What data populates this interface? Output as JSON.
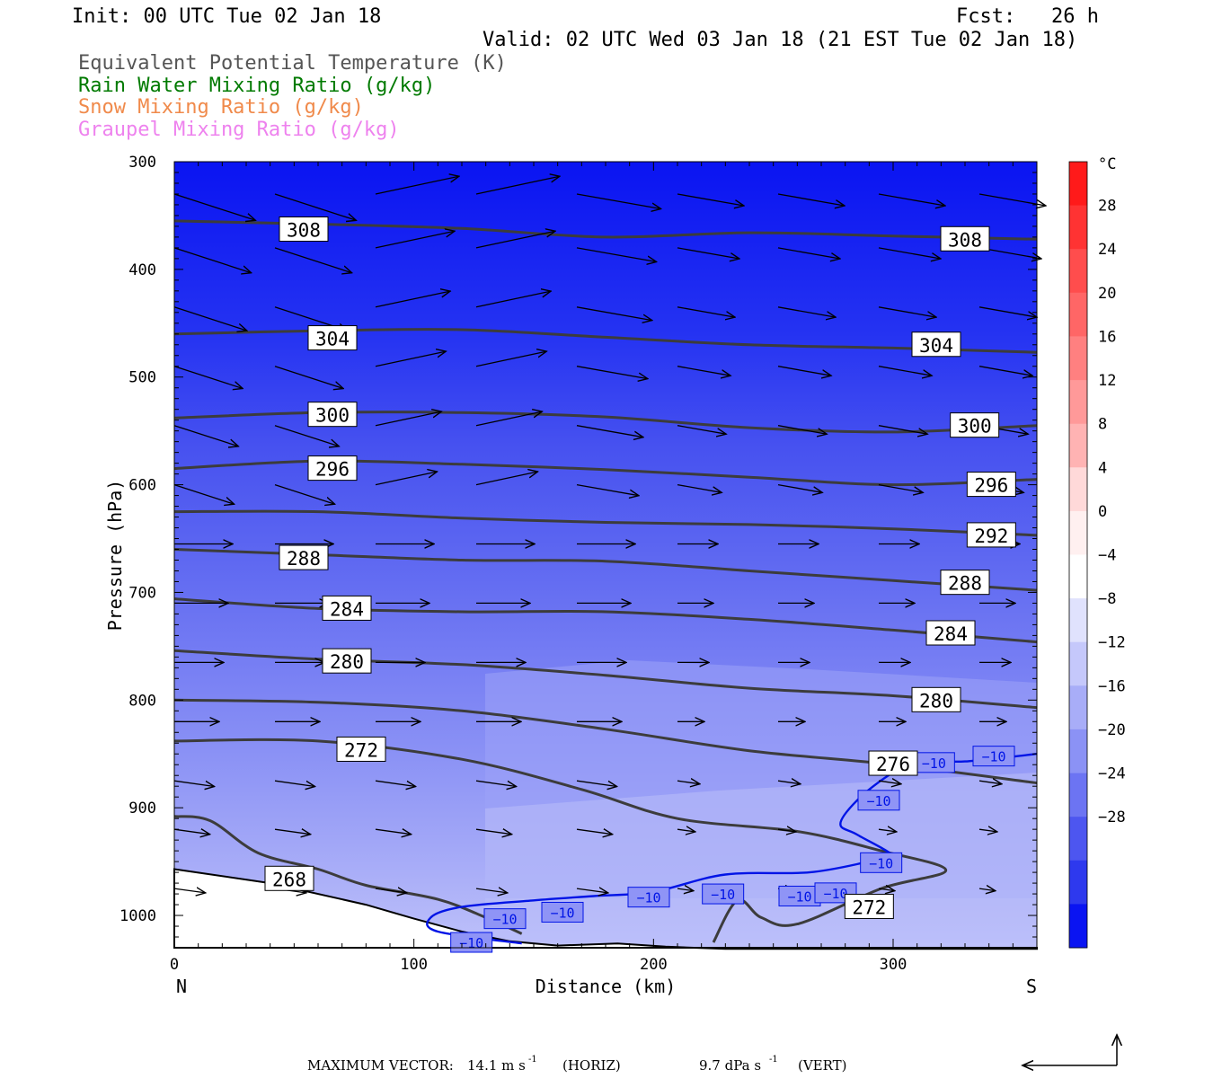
{
  "header": {
    "init": "Init: 00 UTC Tue 02 Jan 18",
    "fcst": "Fcst:   26 h",
    "valid": "Valid: 02 UTC Wed 03 Jan 18 (21 EST Tue 02 Jan 18)"
  },
  "legend": [
    {
      "text": "Equivalent Potential Temperature (K)",
      "color": "#555555"
    },
    {
      "text": "Rain Water Mixing Ratio (g/kg)",
      "color": "#007a00"
    },
    {
      "text": "Snow Mixing Ratio (g/kg)",
      "color": "#f08a4b"
    },
    {
      "text": "Graupel Mixing Ratio (g/kg)",
      "color": "#ee82ee"
    }
  ],
  "footer": {
    "label": "MAXIMUM VECTOR:",
    "horiz_value": "14.1 m s",
    "horiz_unit": "(HORIZ)",
    "vert_value": "9.7 dPa s",
    "vert_unit": "(VERT)",
    "exponent": "-1"
  },
  "chart_data": {
    "type": "contour-cross-section",
    "xlabel": "Distance (km)",
    "ylabel": "Pressure (hPa)",
    "xlim": [
      0,
      360
    ],
    "ylim": [
      1030,
      300
    ],
    "x_ticks": [
      "0",
      "100",
      "200",
      "300"
    ],
    "y_ticks": [
      "300",
      "400",
      "500",
      "600",
      "700",
      "800",
      "900",
      "1000"
    ],
    "x_end_labels": {
      "left": "N",
      "right": "S"
    },
    "colorbar": {
      "unit": "°C",
      "labels": [
        "28",
        "24",
        "20",
        "16",
        "12",
        "8",
        "4",
        "0",
        "−4",
        "−8",
        "−12",
        "−16",
        "−20",
        "−24",
        "−28"
      ]
    },
    "theta_e_contours": [
      {
        "value": "308",
        "points": [
          [
            0,
            355
          ],
          [
            60,
            358
          ],
          [
            120,
            362
          ],
          [
            180,
            370
          ],
          [
            240,
            366
          ],
          [
            300,
            369
          ],
          [
            360,
            372
          ]
        ],
        "labels": [
          [
            54,
            363
          ],
          [
            330,
            372
          ]
        ]
      },
      {
        "value": "304",
        "points": [
          [
            0,
            460
          ],
          [
            60,
            457
          ],
          [
            120,
            456
          ],
          [
            180,
            463
          ],
          [
            240,
            470
          ],
          [
            300,
            473
          ],
          [
            360,
            477
          ]
        ],
        "labels": [
          [
            66,
            464
          ],
          [
            318,
            470
          ]
        ]
      },
      {
        "value": "300",
        "points": [
          [
            0,
            538
          ],
          [
            60,
            533
          ],
          [
            120,
            533
          ],
          [
            180,
            537
          ],
          [
            240,
            547
          ],
          [
            300,
            551
          ],
          [
            360,
            545
          ]
        ],
        "labels": [
          [
            66,
            535
          ],
          [
            334,
            545
          ]
        ]
      },
      {
        "value": "296",
        "points": [
          [
            0,
            585
          ],
          [
            60,
            578
          ],
          [
            120,
            581
          ],
          [
            180,
            586
          ],
          [
            240,
            593
          ],
          [
            300,
            600
          ],
          [
            360,
            595
          ]
        ],
        "labels": [
          [
            66,
            585
          ],
          [
            341,
            600
          ]
        ]
      },
      {
        "value": "292",
        "points": [
          [
            0,
            625
          ],
          [
            60,
            625
          ],
          [
            120,
            631
          ],
          [
            180,
            635
          ],
          [
            240,
            637
          ],
          [
            300,
            641
          ],
          [
            360,
            647
          ]
        ],
        "labels": [
          [
            341,
            647
          ]
        ]
      },
      {
        "value": "288",
        "points": [
          [
            0,
            660
          ],
          [
            60,
            665
          ],
          [
            120,
            670
          ],
          [
            180,
            671
          ],
          [
            240,
            680
          ],
          [
            300,
            689
          ],
          [
            360,
            698
          ]
        ],
        "labels": [
          [
            54,
            668
          ],
          [
            330,
            691
          ]
        ]
      },
      {
        "value": "284",
        "points": [
          [
            0,
            706
          ],
          [
            60,
            715
          ],
          [
            120,
            718
          ],
          [
            180,
            718
          ],
          [
            240,
            725
          ],
          [
            300,
            735
          ],
          [
            360,
            746
          ]
        ],
        "labels": [
          [
            72,
            715
          ],
          [
            324,
            738
          ]
        ]
      },
      {
        "value": "280",
        "points": [
          [
            0,
            754
          ],
          [
            60,
            762
          ],
          [
            120,
            767
          ],
          [
            180,
            777
          ],
          [
            240,
            789
          ],
          [
            300,
            796
          ],
          [
            360,
            807
          ]
        ],
        "labels": [
          [
            72,
            764
          ],
          [
            318,
            800
          ]
        ]
      },
      {
        "value": "276",
        "points": [
          [
            0,
            800
          ],
          [
            60,
            802
          ],
          [
            120,
            810
          ],
          [
            180,
            827
          ],
          [
            240,
            847
          ],
          [
            300,
            860
          ],
          [
            360,
            877
          ]
        ],
        "labels": [
          [
            300,
            859
          ]
        ]
      },
      {
        "value": "272",
        "points": [
          [
            0,
            838
          ],
          [
            60,
            838
          ],
          [
            120,
            855
          ],
          [
            170,
            883
          ],
          [
            210,
            910
          ],
          [
            260,
            922
          ],
          [
            295,
            940
          ],
          [
            322,
            958
          ],
          [
            295,
            975
          ],
          [
            260,
            1008
          ],
          [
            245,
            1002
          ],
          [
            235,
            986
          ],
          [
            225,
            1025
          ]
        ],
        "labels": [
          [
            78,
            846
          ],
          [
            290,
            992
          ]
        ]
      },
      {
        "value": "268",
        "points": [
          [
            0,
            908
          ],
          [
            15,
            912
          ],
          [
            35,
            942
          ],
          [
            60,
            957
          ],
          [
            80,
            972
          ],
          [
            110,
            985
          ],
          [
            130,
            1002
          ],
          [
            145,
            1017
          ]
        ],
        "labels": [
          [
            48,
            966
          ]
        ]
      }
    ],
    "minus10_isotherm": {
      "value": "−10",
      "points": [
        [
          145,
          1026
        ],
        [
          110,
          1015
        ],
        [
          107,
          1002
        ],
        [
          120,
          992
        ],
        [
          150,
          986
        ],
        [
          175,
          982
        ],
        [
          200,
          978
        ],
        [
          230,
          962
        ],
        [
          265,
          960
        ],
        [
          290,
          950
        ],
        [
          300,
          945
        ],
        [
          285,
          925
        ],
        [
          278,
          915
        ],
        [
          285,
          893
        ],
        [
          298,
          870
        ],
        [
          310,
          857
        ],
        [
          330,
          857
        ],
        [
          360,
          850
        ]
      ],
      "labels": [
        [
          124,
          1025
        ],
        [
          138,
          1003
        ],
        [
          162,
          997
        ],
        [
          198,
          983
        ],
        [
          229,
          980
        ],
        [
          261,
          982
        ],
        [
          276,
          979
        ],
        [
          295,
          951
        ],
        [
          294,
          893
        ],
        [
          317,
          858
        ],
        [
          342,
          852
        ]
      ]
    },
    "terrain_surface": [
      [
        0,
        957
      ],
      [
        40,
        970
      ],
      [
        80,
        990
      ],
      [
        100,
        1003
      ],
      [
        120,
        1015
      ],
      [
        140,
        1024
      ],
      [
        160,
        1028
      ],
      [
        185,
        1026
      ],
      [
        205,
        1029
      ],
      [
        230,
        1031
      ],
      [
        360,
        1031
      ]
    ]
  }
}
